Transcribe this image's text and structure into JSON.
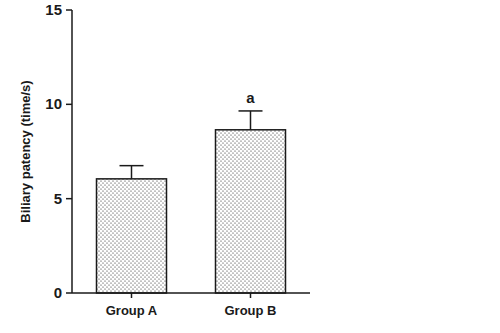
{
  "chart_data": {
    "type": "bar",
    "y_label": "Biliary patency (time/s)",
    "categories": [
      "Group A",
      "Group B"
    ],
    "values": [
      6.05,
      8.65
    ],
    "errors": [
      0.7,
      1.0
    ],
    "annotations": [
      null,
      "a"
    ],
    "color": "#1a1a1a",
    "ylim": [
      0,
      15
    ],
    "yticks": [
      0,
      5,
      10,
      15
    ],
    "grid": false
  }
}
